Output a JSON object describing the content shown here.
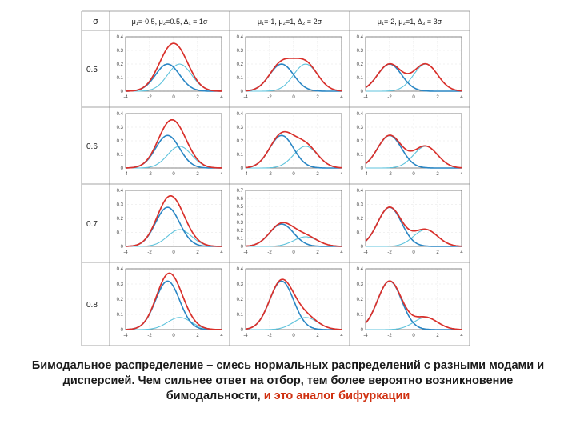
{
  "colors": {
    "mixture": "#d9302b",
    "first_component": "#2a86c4",
    "second_component": "#5fc3dc",
    "grid_line": "#c8c8c8",
    "text": "#1a1a1a",
    "caption_accent": "#d03010"
  },
  "table": {
    "sigma_header": "σ",
    "column_headers": [
      "μ₁=-0.5, μ₂=0.5, Δ₁ = 1σ",
      "μ₁=-1, μ₂=1, Δ₂ = 2σ",
      "μ₁=-2, μ₂=1, Δ₃ = 3σ"
    ],
    "row_labels": [
      "0.5",
      "0.6",
      "0.7",
      "0.8"
    ]
  },
  "chart_data": {
    "type": "line",
    "series_legend": "none",
    "grid": true,
    "panels": [
      {
        "row": 0,
        "col": 0,
        "weights": [
          0.5,
          0.5
        ],
        "means": [
          -0.5,
          0.5
        ],
        "xlim": [
          -4,
          4
        ],
        "ylim": [
          0,
          0.4
        ],
        "xticks": [
          -4,
          -2,
          0,
          2,
          4
        ],
        "yticks": [
          0,
          0.1,
          0.2,
          0.3,
          0.4
        ]
      },
      {
        "row": 0,
        "col": 1,
        "weights": [
          0.5,
          0.5
        ],
        "means": [
          -1,
          1
        ],
        "xlim": [
          -4,
          4
        ],
        "ylim": [
          0,
          0.4
        ],
        "xticks": [
          -4,
          -2,
          0,
          2,
          4
        ],
        "yticks": [
          0,
          0.1,
          0.2,
          0.3,
          0.4
        ]
      },
      {
        "row": 0,
        "col": 2,
        "weights": [
          0.5,
          0.5
        ],
        "means": [
          -2,
          1
        ],
        "xlim": [
          -4,
          4
        ],
        "ylim": [
          0,
          0.4
        ],
        "xticks": [
          -4,
          -2,
          0,
          2,
          4
        ],
        "yticks": [
          0,
          0.1,
          0.2,
          0.3,
          0.4
        ]
      },
      {
        "row": 1,
        "col": 0,
        "weights": [
          0.6,
          0.4
        ],
        "means": [
          -0.5,
          0.5
        ],
        "xlim": [
          -4,
          4
        ],
        "ylim": [
          0,
          0.4
        ],
        "xticks": [
          -4,
          -2,
          0,
          2,
          4
        ],
        "yticks": [
          0,
          0.1,
          0.2,
          0.3,
          0.4
        ]
      },
      {
        "row": 1,
        "col": 1,
        "weights": [
          0.6,
          0.4
        ],
        "means": [
          -1,
          1
        ],
        "xlim": [
          -4,
          4
        ],
        "ylim": [
          0,
          0.4
        ],
        "xticks": [
          -4,
          -2,
          0,
          2,
          4
        ],
        "yticks": [
          0,
          0.1,
          0.2,
          0.3,
          0.4
        ]
      },
      {
        "row": 1,
        "col": 2,
        "weights": [
          0.6,
          0.4
        ],
        "means": [
          -2,
          1
        ],
        "xlim": [
          -4,
          4
        ],
        "ylim": [
          0,
          0.4
        ],
        "xticks": [
          -4,
          -2,
          0,
          2,
          4
        ],
        "yticks": [
          0,
          0.1,
          0.2,
          0.3,
          0.4
        ]
      },
      {
        "row": 2,
        "col": 0,
        "weights": [
          0.7,
          0.3
        ],
        "means": [
          -0.5,
          0.5
        ],
        "xlim": [
          -4,
          4
        ],
        "ylim": [
          0,
          0.4
        ],
        "xticks": [
          -4,
          -2,
          0,
          2,
          4
        ],
        "yticks": [
          0,
          0.1,
          0.2,
          0.3,
          0.4
        ]
      },
      {
        "row": 2,
        "col": 1,
        "weights": [
          0.7,
          0.3
        ],
        "means": [
          -1,
          1
        ],
        "xlim": [
          -4,
          4
        ],
        "ylim": [
          0,
          0.7
        ],
        "xticks": [
          -4,
          -2,
          0,
          2,
          4
        ],
        "yticks": [
          0,
          0.1,
          0.2,
          0.3,
          0.4,
          0.5,
          0.6,
          0.7
        ]
      },
      {
        "row": 2,
        "col": 2,
        "weights": [
          0.7,
          0.3
        ],
        "means": [
          -2,
          1
        ],
        "xlim": [
          -4,
          4
        ],
        "ylim": [
          0,
          0.4
        ],
        "xticks": [
          -4,
          -2,
          0,
          2,
          4
        ],
        "yticks": [
          0,
          0.1,
          0.2,
          0.3,
          0.4
        ]
      },
      {
        "row": 3,
        "col": 0,
        "weights": [
          0.8,
          0.2
        ],
        "means": [
          -0.5,
          0.5
        ],
        "xlim": [
          -4,
          4
        ],
        "ylim": [
          0,
          0.4
        ],
        "xticks": [
          -4,
          -2,
          0,
          2,
          4
        ],
        "yticks": [
          0,
          0.1,
          0.2,
          0.3,
          0.4
        ]
      },
      {
        "row": 3,
        "col": 1,
        "weights": [
          0.8,
          0.2
        ],
        "means": [
          -1,
          1
        ],
        "xlim": [
          -4,
          4
        ],
        "ylim": [
          0,
          0.4
        ],
        "xticks": [
          -4,
          -2,
          0,
          2,
          4
        ],
        "yticks": [
          0,
          0.1,
          0.2,
          0.3,
          0.4
        ]
      },
      {
        "row": 3,
        "col": 2,
        "weights": [
          0.8,
          0.2
        ],
        "means": [
          -2,
          1
        ],
        "xlim": [
          -4,
          4
        ],
        "ylim": [
          0,
          0.4
        ],
        "xticks": [
          -4,
          -2,
          0,
          2,
          4
        ],
        "yticks": [
          0,
          0.1,
          0.2,
          0.3,
          0.4
        ]
      }
    ]
  },
  "caption": {
    "text": "Бимодальное распределение – смесь нормальных распределений с разными модами и дисперсией. Чем сильнее ответ на отбор, тем более вероятно возникновение бимодальности,",
    "accent": " и это аналог бифуркации"
  }
}
